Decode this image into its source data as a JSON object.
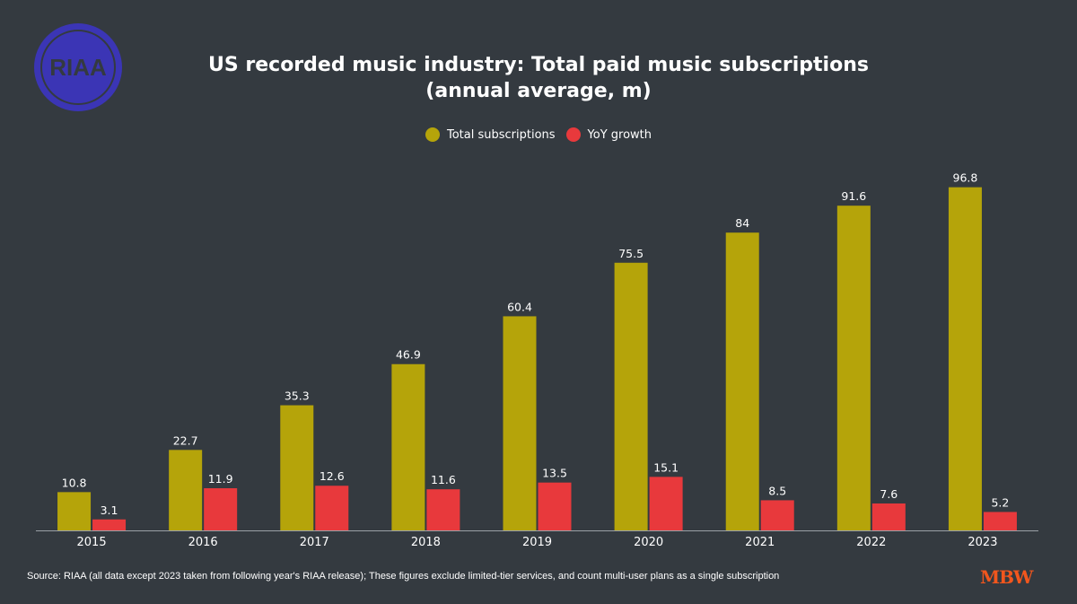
{
  "logo_text": "RIAA",
  "brand": "MBW",
  "colors": {
    "background": "#343a40",
    "total": "#b5a40a",
    "growth": "#e8393c",
    "logo": "#3b35b5"
  },
  "chart_data": {
    "type": "bar",
    "title_line1": "US recorded music industry: Total paid music subscriptions",
    "title_line2": "(annual average, m)",
    "categories": [
      "2015",
      "2016",
      "2017",
      "2018",
      "2019",
      "2020",
      "2021",
      "2022",
      "2023"
    ],
    "series": [
      {
        "name": "Total subscriptions",
        "values": [
          10.8,
          22.7,
          35.3,
          46.9,
          60.4,
          75.5,
          84,
          91.6,
          96.8
        ]
      },
      {
        "name": "YoY growth",
        "values": [
          3.1,
          11.9,
          12.6,
          11.6,
          13.5,
          15.1,
          8.5,
          7.6,
          5.2
        ]
      }
    ],
    "ylim": [
      0,
      100
    ],
    "grid": false,
    "legend": "top-center",
    "xlabel": "",
    "ylabel": ""
  },
  "source": "Source: RIAA (all data except 2023 taken from following year's RIAA release); These figures exclude limited-tier services, and count multi-user plans as a single subscription"
}
